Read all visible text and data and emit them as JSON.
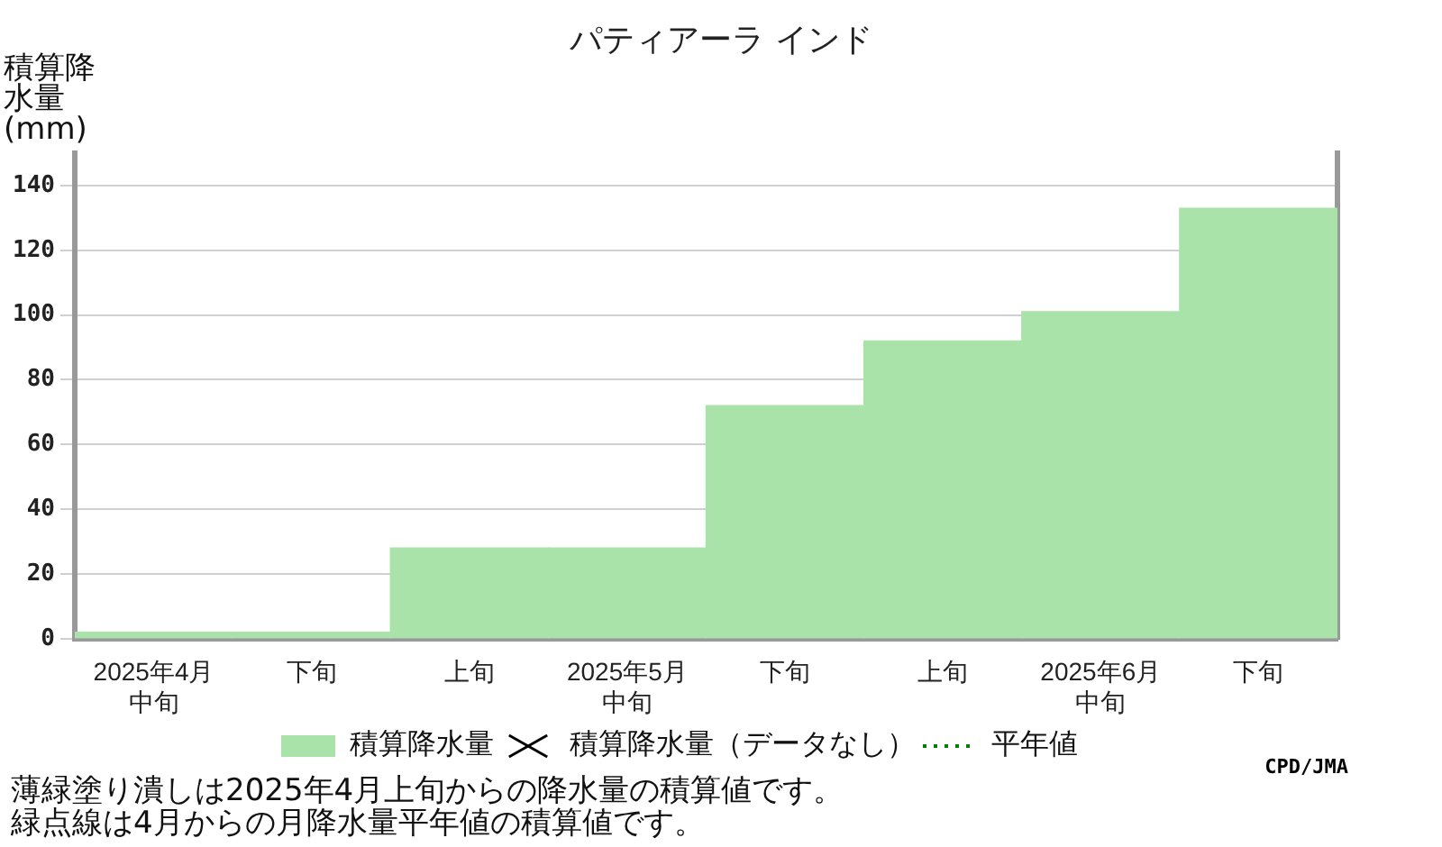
{
  "chart_data": {
    "type": "bar",
    "title": "パティアーラ インド",
    "ylabel": "積算降水量(mm)",
    "categories": [
      "2025年4月中旬",
      "下旬",
      "上旬",
      "2025年5月中旬",
      "下旬",
      "上旬",
      "2025年6月中旬",
      "下旬"
    ],
    "series": [
      {
        "name": "積算降水量",
        "color": "#aae3a9",
        "values": [
          2,
          2,
          28,
          28,
          72,
          92,
          101,
          133
        ]
      },
      {
        "name": "積算降水量（データなし）",
        "type": "scatter",
        "marker": "cross",
        "color": "#000000",
        "values": [
          null,
          null,
          null,
          null,
          null,
          null,
          null,
          null
        ]
      },
      {
        "name": "平年値",
        "type": "line",
        "line_style": "dotted",
        "marker": "none",
        "color": "#008000",
        "values": [
          null,
          null,
          null,
          null,
          null,
          null,
          null,
          null
        ]
      }
    ],
    "ylim": [
      0,
      150
    ],
    "yticks": [
      0,
      20,
      40,
      60,
      80,
      100,
      120,
      140
    ],
    "grid": "y",
    "legend": "bottom",
    "annotations": [
      "CPD/JMA",
      "薄緑塗り潰しは2025年4月上旬からの降水量の積算値です。",
      "緑点線は4月からの月降水量平年値の積算値です。"
    ]
  }
}
